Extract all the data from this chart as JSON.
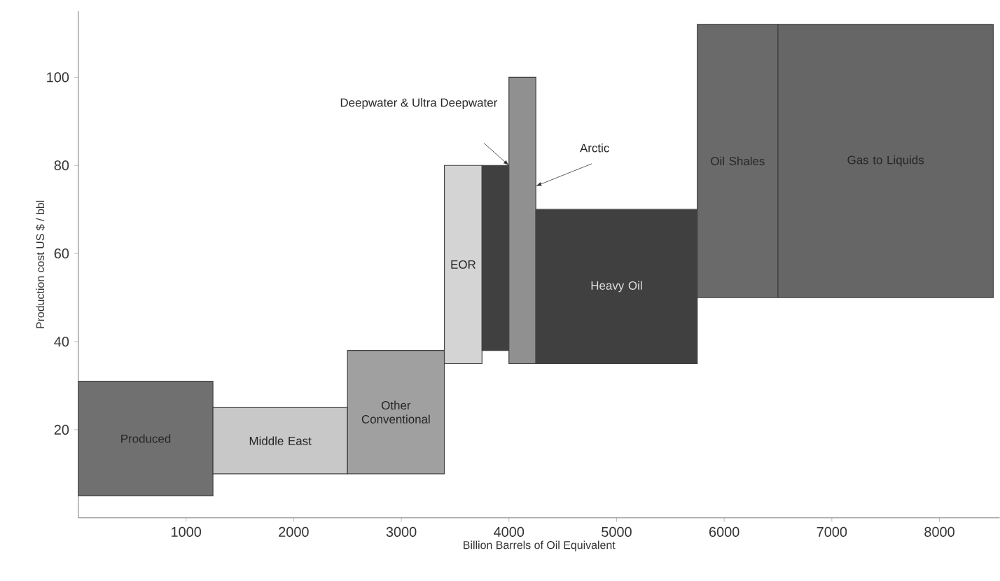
{
  "chart_data": {
    "type": "histogram",
    "xlabel": "Billion Barrels of Oil Equivalent",
    "ylabel": "Production cost US $ / bbl",
    "bins": [
      0,
      1250,
      2500,
      3400,
      3750,
      4000,
      4250,
      5750,
      6500,
      8500
    ],
    "values": [
      26,
      15,
      28,
      45,
      42,
      65,
      35,
      62,
      62
    ],
    "base": [
      5,
      10,
      10,
      35,
      38,
      35,
      35,
      50,
      50
    ],
    "colors": [
      "#707070",
      "#c8c8c8",
      "#a0a0a0",
      "#d4d4d4",
      "#404040",
      "#909090",
      "#404040",
      "#6a6a6a",
      "#666666"
    ],
    "xlim": [
      0,
      8560
    ],
    "ylim": [
      0,
      115
    ],
    "xticks": [
      1000,
      2000,
      3000,
      4000,
      5000,
      6000,
      7000,
      8000
    ],
    "yticks": [
      20,
      40,
      60,
      80,
      100
    ],
    "categories": [
      "Produced",
      "Middle East",
      "Other Conventional",
      "EOR",
      "Deepwater & Ultra Deepwater",
      "Arctic",
      "Heavy Oil",
      "Oil Shales",
      "Gas to Liquids"
    ]
  }
}
